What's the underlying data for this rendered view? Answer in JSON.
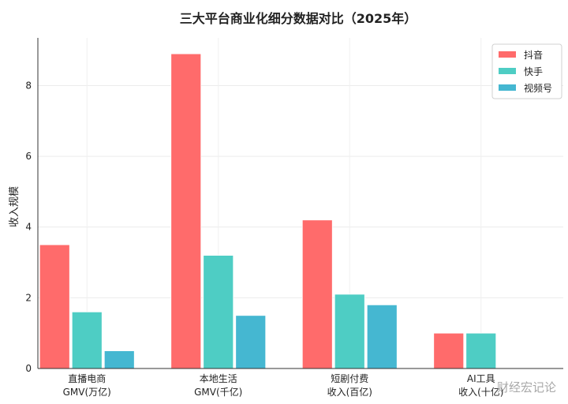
{
  "chart_data": {
    "type": "bar",
    "title": "三大平台商业化细分数据对比（2025年）",
    "ylabel": "收入规模",
    "xlabel": "",
    "categories": [
      [
        "直播电商",
        "GMV(万亿)"
      ],
      [
        "本地生活",
        "GMV(千亿)"
      ],
      [
        "短剧付费",
        "收入(百亿)"
      ],
      [
        "AI工具",
        "收入(十亿)"
      ]
    ],
    "series": [
      {
        "name": "抖音",
        "color": "#ff6b6b",
        "values": [
          3.5,
          8.9,
          4.2,
          1.0
        ]
      },
      {
        "name": "快手",
        "color": "#4ecdc4",
        "values": [
          1.6,
          3.2,
          2.1,
          1.0
        ]
      },
      {
        "name": "视频号",
        "color": "#45b7d1",
        "values": [
          0.5,
          1.5,
          1.8,
          0
        ]
      }
    ],
    "ylim": [
      0,
      9.35
    ],
    "yticks": [
      0,
      2,
      4,
      6,
      8
    ],
    "grid": true,
    "legend_position": "top-right"
  },
  "watermark": "财经宏记论"
}
